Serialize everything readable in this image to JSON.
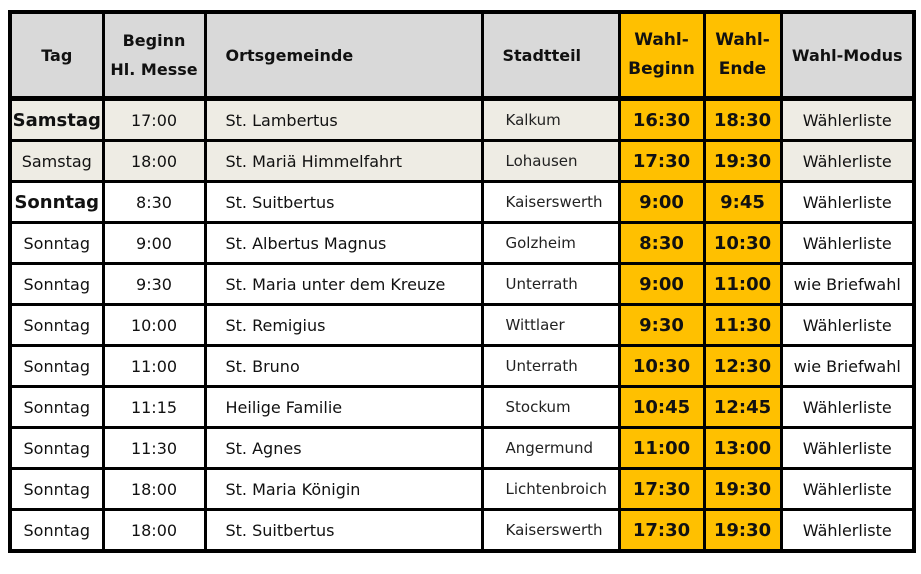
{
  "colors": {
    "header_bg": "#d9d9d9",
    "highlight_yellow": "#ffc000",
    "saturday_row_bg": "#eeece4",
    "row_bg": "#ffffff",
    "border": "#000000"
  },
  "table": {
    "headers": {
      "tag": "Tag",
      "beginn_line1": "Beginn",
      "beginn_line2": "Hl. Messe",
      "ortsgemeinde": "Ortsgemeinde",
      "stadtteil": "Stadtteil",
      "wahl_beginn_line1": "Wahl-",
      "wahl_beginn_line2": "Beginn",
      "wahl_ende_line1": "Wahl-",
      "wahl_ende_line2": "Ende",
      "wahl_modus": "Wahl-Modus"
    },
    "rows": [
      {
        "tag": "Samstag",
        "tag_bold": true,
        "beginn": "17:00",
        "ortsgemeinde": "St. Lambertus",
        "stadtteil": "Kalkum",
        "wahl_beginn": "16:30",
        "wahl_ende": "18:30",
        "wahl_modus": "Wählerliste"
      },
      {
        "tag": "Samstag",
        "tag_bold": false,
        "beginn": "18:00",
        "ortsgemeinde": "St. Mariä Himmelfahrt",
        "stadtteil": "Lohausen",
        "wahl_beginn": "17:30",
        "wahl_ende": "19:30",
        "wahl_modus": "Wählerliste"
      },
      {
        "tag": "Sonntag",
        "tag_bold": true,
        "beginn": "8:30",
        "ortsgemeinde": "St. Suitbertus",
        "stadtteil": "Kaiserswerth",
        "wahl_beginn": "9:00",
        "wahl_ende": "9:45",
        "wahl_modus": "Wählerliste"
      },
      {
        "tag": "Sonntag",
        "tag_bold": false,
        "beginn": "9:00",
        "ortsgemeinde": "St. Albertus Magnus",
        "stadtteil": "Golzheim",
        "wahl_beginn": "8:30",
        "wahl_ende": "10:30",
        "wahl_modus": "Wählerliste"
      },
      {
        "tag": "Sonntag",
        "tag_bold": false,
        "beginn": "9:30",
        "ortsgemeinde": "St. Maria unter dem Kreuze",
        "stadtteil": "Unterrath",
        "wahl_beginn": "9:00",
        "wahl_ende": "11:00",
        "wahl_modus": "wie Briefwahl"
      },
      {
        "tag": "Sonntag",
        "tag_bold": false,
        "beginn": "10:00",
        "ortsgemeinde": "St. Remigius",
        "stadtteil": "Wittlaer",
        "wahl_beginn": "9:30",
        "wahl_ende": "11:30",
        "wahl_modus": "Wählerliste"
      },
      {
        "tag": "Sonntag",
        "tag_bold": false,
        "beginn": "11:00",
        "ortsgemeinde": "St. Bruno",
        "stadtteil": "Unterrath",
        "wahl_beginn": "10:30",
        "wahl_ende": "12:30",
        "wahl_modus": "wie Briefwahl"
      },
      {
        "tag": "Sonntag",
        "tag_bold": false,
        "beginn": "11:15",
        "ortsgemeinde": "Heilige Familie",
        "stadtteil": "Stockum",
        "wahl_beginn": "10:45",
        "wahl_ende": "12:45",
        "wahl_modus": "Wählerliste"
      },
      {
        "tag": "Sonntag",
        "tag_bold": false,
        "beginn": "11:30",
        "ortsgemeinde": "St. Agnes",
        "stadtteil": "Angermund",
        "wahl_beginn": "11:00",
        "wahl_ende": "13:00",
        "wahl_modus": "Wählerliste"
      },
      {
        "tag": "Sonntag",
        "tag_bold": false,
        "beginn": "18:00",
        "ortsgemeinde": "St. Maria Königin",
        "stadtteil": "Lichtenbroich",
        "wahl_beginn": "17:30",
        "wahl_ende": "19:30",
        "wahl_modus": "Wählerliste"
      },
      {
        "tag": "Sonntag",
        "tag_bold": false,
        "beginn": "18:00",
        "ortsgemeinde": "St. Suitbertus",
        "stadtteil": "Kaiserswerth",
        "wahl_beginn": "17:30",
        "wahl_ende": "19:30",
        "wahl_modus": "Wählerliste"
      }
    ]
  }
}
